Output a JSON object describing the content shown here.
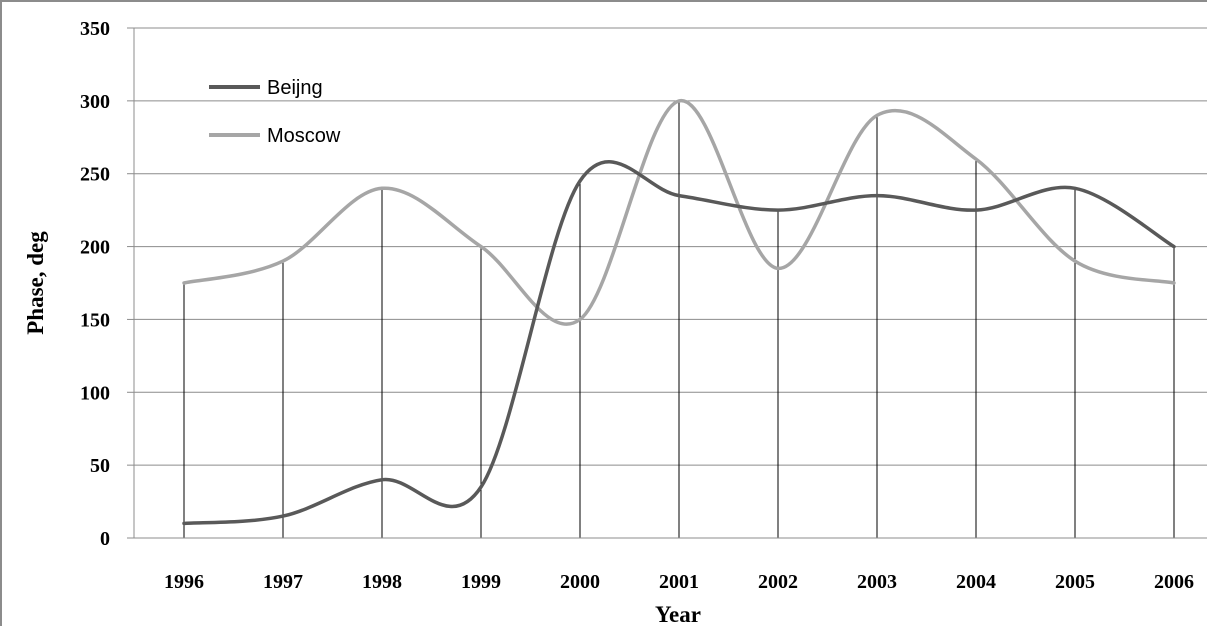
{
  "chart_data": {
    "type": "line",
    "title": "",
    "xlabel": "Year",
    "ylabel": "Phase, deg",
    "ylim": [
      0,
      350
    ],
    "yticks": [
      0,
      50,
      100,
      150,
      200,
      250,
      300,
      350
    ],
    "categories": [
      "1996",
      "1997",
      "1998",
      "1999",
      "2000",
      "2001",
      "2002",
      "2003",
      "2004",
      "2005",
      "2006"
    ],
    "grid": "horizontal",
    "drop_lines": true,
    "smooth": true,
    "legend": "top-left",
    "series": [
      {
        "name": "Beijng",
        "color": "#595959",
        "values": [
          10,
          15,
          40,
          35,
          245,
          235,
          225,
          235,
          225,
          240,
          200
        ]
      },
      {
        "name": "Moscow",
        "color": "#a6a6a6",
        "values": [
          175,
          190,
          240,
          200,
          150,
          300,
          185,
          290,
          260,
          190,
          175
        ]
      }
    ]
  }
}
